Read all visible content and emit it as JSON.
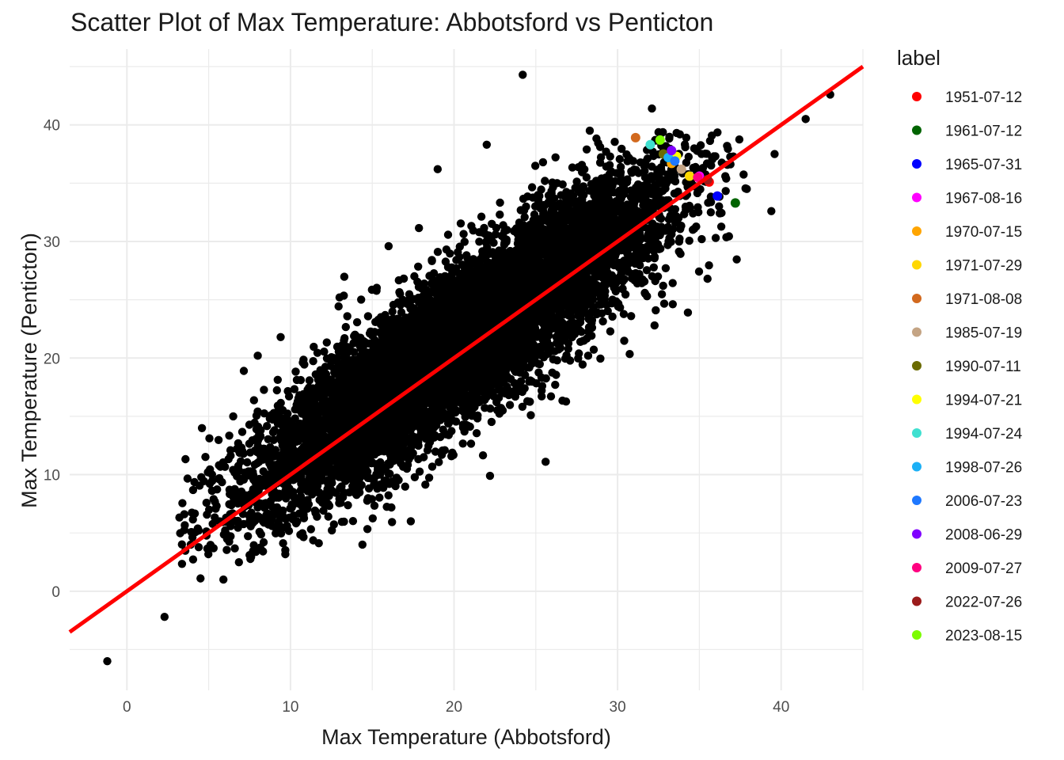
{
  "chart_data": {
    "type": "scatter",
    "title": "Scatter Plot of Max Temperature: Abbotsford vs Penticton",
    "xlabel": "Max Temperature (Abbotsford)",
    "ylabel": "Max Temperature (Penticton)",
    "xlim": [
      -3.5,
      45
    ],
    "ylim": [
      -8.5,
      46.5
    ],
    "x_ticks": [
      0,
      10,
      20,
      30,
      40
    ],
    "y_ticks": [
      0,
      10,
      20,
      30,
      40
    ],
    "grid": true,
    "legend_position": "right",
    "legend_title": "label",
    "background_series": {
      "color": "#000000",
      "description_cloud": {
        "x_mean": 20.5,
        "y_mean": 21.5,
        "x_sd": 6.2,
        "y_sd": 6.8,
        "correlation": 0.88
      },
      "points": [
        {
          "x": -1.2,
          "y": -6.0
        },
        {
          "x": 2.3,
          "y": -2.2
        },
        {
          "x": 4.5,
          "y": 1.1
        },
        {
          "x": 5.9,
          "y": 1.0
        },
        {
          "x": 3.9,
          "y": 4.0
        },
        {
          "x": 14.4,
          "y": 4.0
        },
        {
          "x": 24.2,
          "y": 44.3
        },
        {
          "x": 32.1,
          "y": 41.4
        },
        {
          "x": 43.0,
          "y": 42.6
        },
        {
          "x": 41.5,
          "y": 40.5
        },
        {
          "x": 39.6,
          "y": 37.5
        },
        {
          "x": 39.4,
          "y": 32.6
        },
        {
          "x": 37.9,
          "y": 34.5
        },
        {
          "x": 36.0,
          "y": 30.3
        },
        {
          "x": 35.5,
          "y": 26.8
        },
        {
          "x": 34.3,
          "y": 23.9
        },
        {
          "x": 22.0,
          "y": 38.3
        },
        {
          "x": 28.3,
          "y": 39.5
        },
        {
          "x": 19.0,
          "y": 36.2
        },
        {
          "x": 8.0,
          "y": 20.2
        },
        {
          "x": 9.4,
          "y": 21.8
        },
        {
          "x": 6.5,
          "y": 15.0
        },
        {
          "x": 5.3,
          "y": 7.9
        },
        {
          "x": 7.5,
          "y": 3.1
        },
        {
          "x": 9.5,
          "y": 6.6
        },
        {
          "x": 13.0,
          "y": 25.2
        },
        {
          "x": 16.0,
          "y": 29.6
        },
        {
          "x": 25.6,
          "y": 11.1
        },
        {
          "x": 22.2,
          "y": 9.9
        },
        {
          "x": 28.2,
          "y": 20.2
        },
        {
          "x": 31.8,
          "y": 25.3
        },
        {
          "x": 34.6,
          "y": 31.0
        },
        {
          "x": 35.7,
          "y": 32.5
        },
        {
          "x": 33.0,
          "y": 36.9
        },
        {
          "x": 34.2,
          "y": 38.9
        },
        {
          "x": 32.3,
          "y": 38.7
        }
      ]
    },
    "series": [
      {
        "name": "1951-07-12",
        "color": "#FF0000",
        "x": 35.6,
        "y": 35.1
      },
      {
        "name": "1961-07-12",
        "color": "#006400",
        "x": 37.2,
        "y": 33.3
      },
      {
        "name": "1965-07-31",
        "color": "#0000FF",
        "x": 36.1,
        "y": 33.9
      },
      {
        "name": "1967-08-16",
        "color": "#FF00FF",
        "x": 35.0,
        "y": 35.6
      },
      {
        "name": "1970-07-15",
        "color": "#FFA500",
        "x": 33.3,
        "y": 36.7
      },
      {
        "name": "1971-07-29",
        "color": "#FFD700",
        "x": 34.4,
        "y": 35.6
      },
      {
        "name": "1971-08-08",
        "color": "#D2691E",
        "x": 31.1,
        "y": 38.9
      },
      {
        "name": "1985-07-19",
        "color": "#C4A484",
        "x": 33.9,
        "y": 36.2
      },
      {
        "name": "1990-07-11",
        "color": "#6B6B00",
        "x": 32.8,
        "y": 37.5
      },
      {
        "name": "1994-07-21",
        "color": "#FFFF00",
        "x": 33.6,
        "y": 37.3
      },
      {
        "name": "1994-07-24",
        "color": "#40E0D0",
        "x": 32.0,
        "y": 38.3
      },
      {
        "name": "1998-07-26",
        "color": "#1CB0F6",
        "x": 33.1,
        "y": 37.2
      },
      {
        "name": "2006-07-23",
        "color": "#1E78FF",
        "x": 33.5,
        "y": 36.9
      },
      {
        "name": "2008-06-29",
        "color": "#8000FF",
        "x": 33.3,
        "y": 37.8
      },
      {
        "name": "2009-07-27",
        "color": "#FF0080",
        "x": 34.9,
        "y": 35.5
      },
      {
        "name": "2022-07-26",
        "color": "#9B1B1B",
        "x": 35.5,
        "y": 35.3
      },
      {
        "name": "2023-08-15",
        "color": "#7CFC00",
        "x": 32.6,
        "y": 38.7
      }
    ],
    "fit_line": {
      "color": "#FF0000",
      "intercept": 0.0,
      "slope": 1.0
    }
  }
}
